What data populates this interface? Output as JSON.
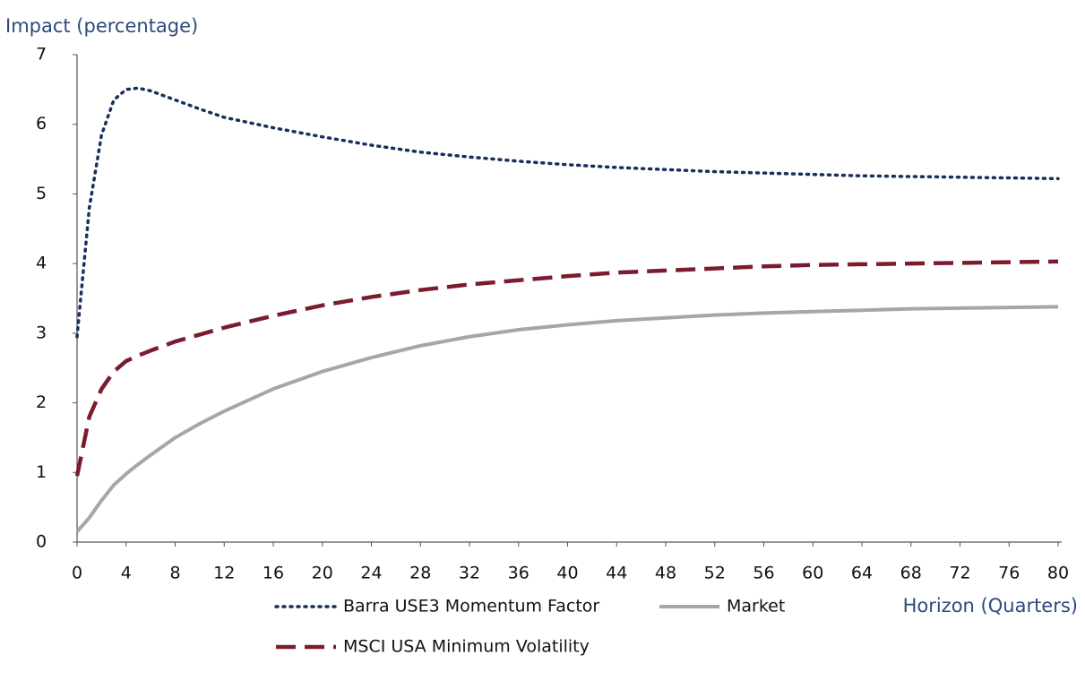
{
  "chart_data": {
    "type": "line",
    "y_label": "Impact (percentage)",
    "x_label": "Horizon (Quarters)",
    "x": [
      0,
      1,
      2,
      3,
      4,
      5,
      6,
      8,
      10,
      12,
      16,
      20,
      24,
      28,
      32,
      36,
      40,
      44,
      48,
      52,
      56,
      60,
      64,
      68,
      72,
      76,
      80
    ],
    "series": [
      {
        "name": "Barra USE3 Momentum Factor",
        "color": "#1b2f5e",
        "dash": "dotted",
        "values": [
          2.95,
          4.8,
          5.85,
          6.35,
          6.5,
          6.52,
          6.48,
          6.35,
          6.22,
          6.1,
          5.95,
          5.82,
          5.7,
          5.6,
          5.53,
          5.47,
          5.42,
          5.38,
          5.35,
          5.32,
          5.3,
          5.28,
          5.26,
          5.25,
          5.24,
          5.23,
          5.22
        ]
      },
      {
        "name": "Market",
        "color": "#a6a6a6",
        "dash": "solid",
        "values": [
          0.15,
          0.35,
          0.6,
          0.82,
          0.98,
          1.12,
          1.25,
          1.5,
          1.7,
          1.88,
          2.2,
          2.45,
          2.65,
          2.82,
          2.95,
          3.05,
          3.12,
          3.18,
          3.22,
          3.26,
          3.29,
          3.31,
          3.33,
          3.35,
          3.36,
          3.37,
          3.38
        ]
      },
      {
        "name": "MSCI USA Minimum Volatility",
        "color": "#7b1c2e",
        "dash": "dashed",
        "values": [
          0.95,
          1.8,
          2.2,
          2.45,
          2.6,
          2.68,
          2.75,
          2.88,
          2.98,
          3.08,
          3.25,
          3.4,
          3.52,
          3.62,
          3.7,
          3.76,
          3.82,
          3.87,
          3.9,
          3.93,
          3.96,
          3.98,
          3.99,
          4.0,
          4.01,
          4.02,
          4.03
        ]
      }
    ],
    "xlim": [
      0,
      80
    ],
    "xticks": [
      0,
      4,
      8,
      12,
      16,
      20,
      24,
      28,
      32,
      36,
      40,
      44,
      48,
      52,
      56,
      60,
      64,
      68,
      72,
      76,
      80
    ],
    "ylim": [
      0,
      7
    ],
    "yticks": [
      0,
      1,
      2,
      3,
      4,
      5,
      6,
      7
    ],
    "grid": false,
    "legend": "bottom"
  }
}
